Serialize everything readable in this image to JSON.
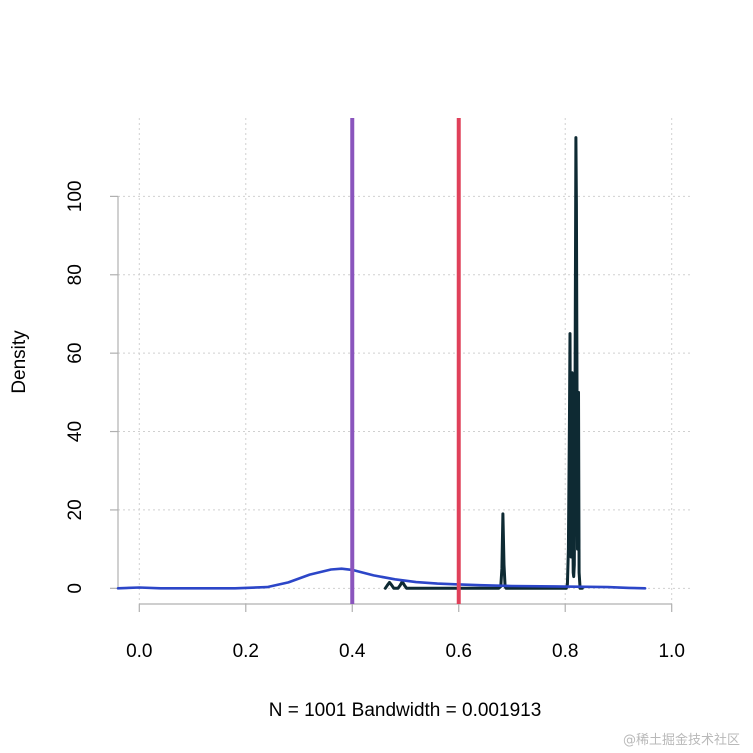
{
  "chart_data": {
    "type": "line",
    "xlabel": "N = 1001   Bandwidth = 0.001913",
    "ylabel": "Density",
    "xlim": [
      -0.04,
      1.04
    ],
    "ylim": [
      -4,
      120
    ],
    "grid": true,
    "x_ticks": [
      "0.0",
      "0.2",
      "0.4",
      "0.6",
      "0.8",
      "1.0"
    ],
    "x_tick_values": [
      0.0,
      0.2,
      0.4,
      0.6,
      0.8,
      1.0
    ],
    "y_ticks": [
      "0",
      "20",
      "40",
      "60",
      "80",
      "100"
    ],
    "y_tick_values": [
      0,
      20,
      40,
      60,
      80,
      100
    ],
    "series": [
      {
        "color": "#0e2a33",
        "x": [
          0.462,
          0.466,
          0.47,
          0.474,
          0.478,
          0.486,
          0.49,
          0.494,
          0.498,
          0.502,
          0.51,
          0.6,
          0.675,
          0.679,
          0.681,
          0.683,
          0.685,
          0.687,
          0.689,
          0.693,
          0.7,
          0.78,
          0.802,
          0.804,
          0.806,
          0.808,
          0.809,
          0.81,
          0.811,
          0.812,
          0.813,
          0.814,
          0.815,
          0.816,
          0.817,
          0.818,
          0.819,
          0.82,
          0.821,
          0.822,
          0.823,
          0.824,
          0.825,
          0.826,
          0.828,
          0.832
        ],
        "y": [
          0,
          0.8,
          1.5,
          0.8,
          0,
          0,
          0.8,
          1.7,
          0.8,
          0,
          0,
          0,
          0,
          0.5,
          5,
          19,
          6,
          0.5,
          0,
          0,
          0,
          0,
          0,
          1,
          10,
          45,
          65,
          30,
          8,
          40,
          55,
          18,
          4,
          3,
          6,
          30,
          70,
          115,
          98,
          60,
          10,
          22,
          50,
          4,
          0,
          0
        ]
      },
      {
        "color": "#2c46c8",
        "x": [
          -0.04,
          0.0,
          0.04,
          0.1,
          0.18,
          0.24,
          0.28,
          0.32,
          0.36,
          0.38,
          0.4,
          0.42,
          0.44,
          0.48,
          0.52,
          0.56,
          0.6,
          0.64,
          0.7,
          0.78,
          0.84,
          0.88,
          0.92,
          0.95
        ],
        "y": [
          0,
          0.2,
          0,
          0,
          0,
          0.3,
          1.5,
          3.5,
          4.8,
          5.0,
          4.7,
          4.0,
          3.3,
          2.3,
          1.6,
          1.2,
          1.0,
          0.8,
          0.6,
          0.5,
          0.4,
          0.3,
          0.1,
          0
        ]
      }
    ],
    "vlines": [
      {
        "x": 0.4,
        "color": "#8a55bd"
      },
      {
        "x": 0.6,
        "color": "#e0405a"
      }
    ]
  },
  "watermark": "@稀土掘金技术社区"
}
